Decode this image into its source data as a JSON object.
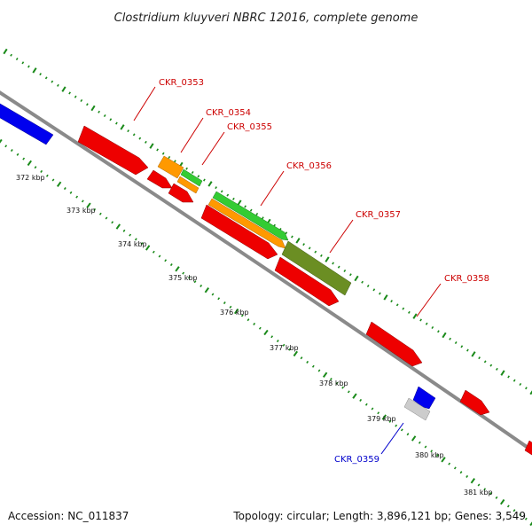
{
  "title": "Clostridium kluyveri NBRC 12016, complete genome",
  "footer": {
    "accession": "Accession: NC_011837",
    "summary": "Topology: circular; Length: 3,896,121 bp; Genes: 3,549"
  },
  "colors": {
    "backbone": "#888888",
    "tick_green": "#1a8a1a",
    "label_red": "#cc0000",
    "label_blue": "#0000cc",
    "gene_red": "#ee0000",
    "gene_blue": "#0000ee",
    "gene_orange": "#ff9900",
    "gene_green": "#33cc33",
    "gene_olive": "#6b8e23",
    "gene_gray": "#cccccc"
  },
  "axis": {
    "tick_labels": [
      "372 kbp",
      "373 kbp",
      "374 kbp",
      "375 kbp",
      "376 kbp",
      "377 kbp",
      "378 kbp",
      "379 kbp",
      "380 kbp",
      "381 kbp"
    ]
  },
  "genes": [
    {
      "label": "CKR_0353",
      "label_color": "red",
      "fill": "gene_red"
    },
    {
      "label": "CKR_0354",
      "label_color": "red",
      "fill": "gene_orange"
    },
    {
      "label": "CKR_0355",
      "label_color": "red",
      "fill": "gene_green"
    },
    {
      "label": "CKR_0356",
      "label_color": "red",
      "fill": "gene_green"
    },
    {
      "label": "CKR_0357",
      "label_color": "red",
      "fill": "gene_olive"
    },
    {
      "label": "CKR_0358",
      "label_color": "red",
      "fill": "gene_red"
    },
    {
      "label": "CKR_0359",
      "label_color": "blue",
      "fill": "gene_gray"
    }
  ]
}
